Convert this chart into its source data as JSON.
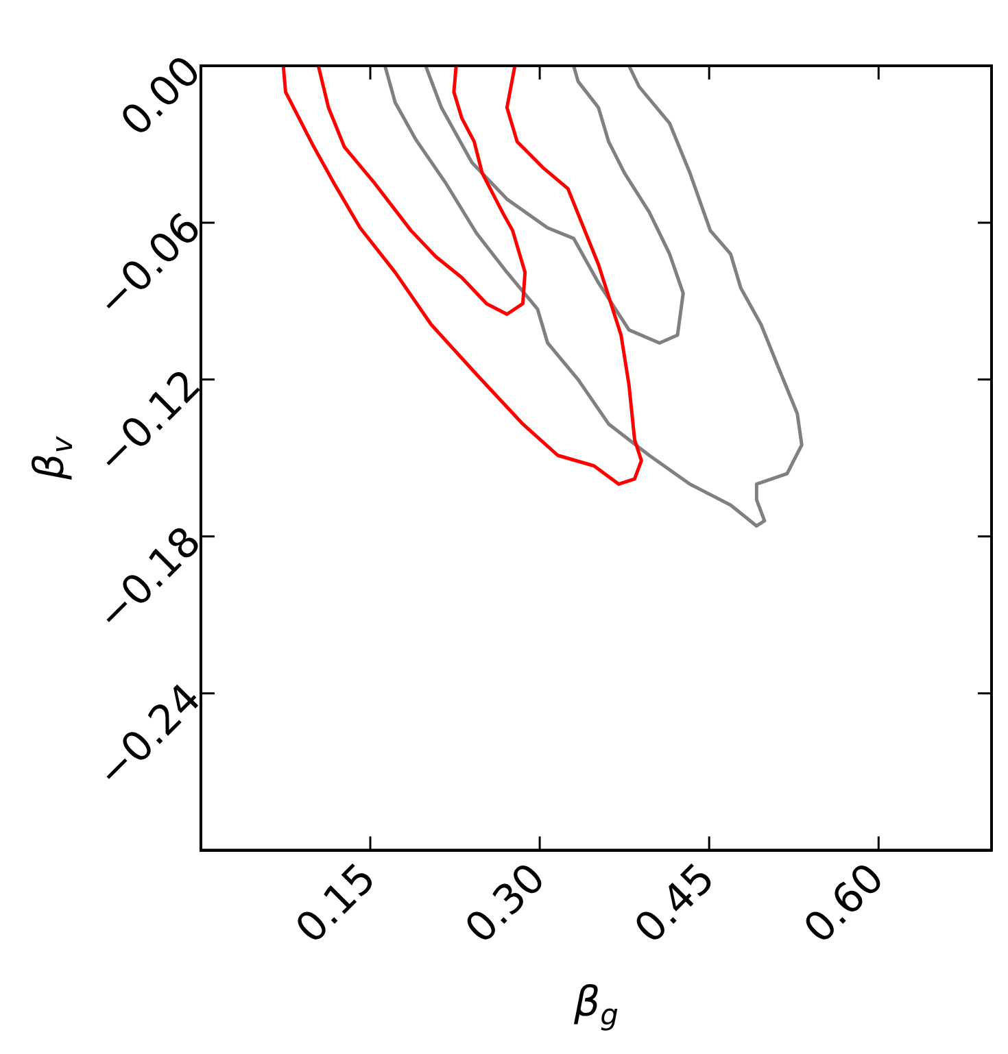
{
  "chart_data": {
    "type": "line",
    "xlabel": "β$_{g}$",
    "ylabel": "β$_{v}$",
    "marker": "none",
    "line_style": "solid",
    "grid": false,
    "legend": false,
    "xlim": [
      0,
      0.7
    ],
    "ylim": [
      -0.3,
      0
    ],
    "xticks": [
      {
        "value": 0.15,
        "label": "0.15"
      },
      {
        "value": 0.3,
        "label": "0.30"
      },
      {
        "value": 0.45,
        "label": "0.45"
      },
      {
        "value": 0.6,
        "label": "0.60"
      }
    ],
    "yticks": [
      {
        "value": 0,
        "label": "0.00"
      },
      {
        "value": -0.06,
        "label": "−0.06"
      },
      {
        "value": -0.12,
        "label": "−0.12"
      },
      {
        "value": -0.18,
        "label": "−0.18"
      },
      {
        "value": -0.24,
        "label": "−0.24"
      }
    ],
    "series": [
      {
        "color": "#ff0000",
        "x": [
          0.073,
          0.075,
          0.1,
          0.118,
          0.141,
          0.172,
          0.204,
          0.244,
          0.285,
          0.316,
          0.348,
          0.37,
          0.384,
          0.39,
          0.384,
          0.379,
          0.372,
          0.352,
          0.325,
          0.303,
          0.28,
          0.271,
          0.278
        ],
        "values": [
          0,
          -0.01,
          -0.031,
          -0.045,
          -0.062,
          -0.079,
          -0.099,
          -0.118,
          -0.137,
          -0.149,
          -0.153,
          -0.16,
          -0.158,
          -0.151,
          -0.143,
          -0.122,
          -0.103,
          -0.076,
          -0.047,
          -0.039,
          -0.029,
          -0.016,
          0
        ]
      },
      {
        "color": "#ff0000",
        "x": [
          0.104,
          0.113,
          0.127,
          0.154,
          0.186,
          0.208,
          0.231,
          0.253,
          0.271,
          0.285,
          0.287,
          0.276,
          0.267,
          0.249,
          0.242,
          0.231,
          0.224,
          0.226
        ],
        "values": [
          0,
          -0.016,
          -0.031,
          -0.045,
          -0.063,
          -0.073,
          -0.081,
          -0.091,
          -0.095,
          -0.091,
          -0.079,
          -0.063,
          -0.056,
          -0.041,
          -0.029,
          -0.02,
          -0.01,
          0
        ]
      },
      {
        "color": "#808080",
        "x": [
          0.199,
          0.213,
          0.24,
          0.271,
          0.307,
          0.33,
          0.352,
          0.379,
          0.406,
          0.422,
          0.427,
          0.415,
          0.397,
          0.375,
          0.361,
          0.352,
          0.334,
          0.33
        ],
        "values": [
          0,
          -0.016,
          -0.037,
          -0.051,
          -0.062,
          -0.066,
          -0.083,
          -0.101,
          -0.106,
          -0.103,
          -0.087,
          -0.072,
          -0.056,
          -0.041,
          -0.029,
          -0.016,
          -0.006,
          0
        ]
      },
      {
        "color": "#808080",
        "x": [
          0.163,
          0.172,
          0.19,
          0.217,
          0.244,
          0.271,
          0.298,
          0.307,
          0.334,
          0.361,
          0.397,
          0.433,
          0.469,
          0.492,
          0.499,
          0.492,
          0.492,
          0.519,
          0.532,
          0.528,
          0.51,
          0.496,
          0.478,
          0.469,
          0.451,
          0.433,
          0.415,
          0.388,
          0.379
        ],
        "values": [
          0,
          -0.014,
          -0.028,
          -0.045,
          -0.064,
          -0.079,
          -0.093,
          -0.106,
          -0.12,
          -0.137,
          -0.149,
          -0.16,
          -0.168,
          -0.176,
          -0.174,
          -0.166,
          -0.16,
          -0.156,
          -0.145,
          -0.133,
          -0.114,
          -0.099,
          -0.085,
          -0.072,
          -0.063,
          -0.041,
          -0.022,
          -0.008,
          0
        ]
      }
    ]
  }
}
